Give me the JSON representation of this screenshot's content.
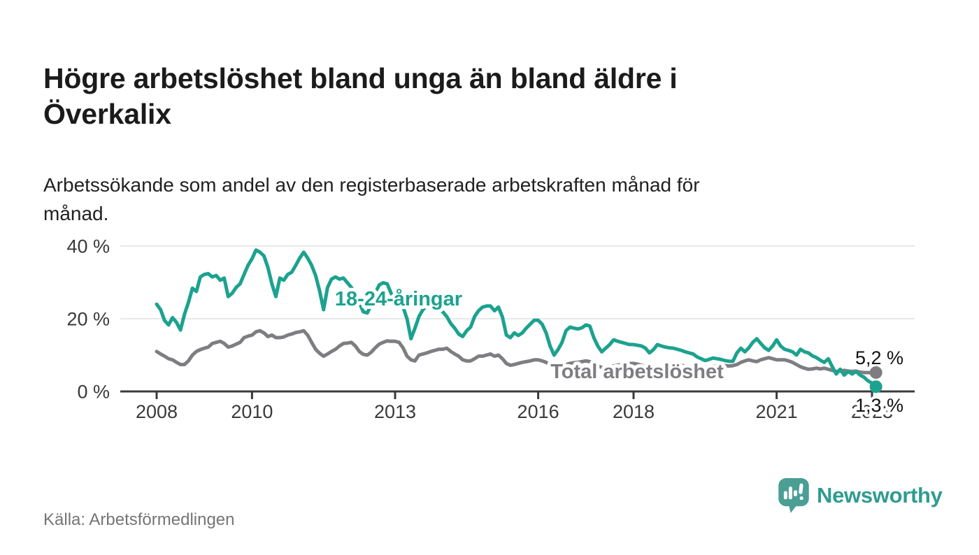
{
  "header": {
    "title": "Högre arbetslöshet bland unga än bland äldre i Överkalix",
    "subtitle": "Arbetssökande som andel av den registerbaserade arbetskraften månad för månad."
  },
  "footer": {
    "source": "Källa: Arbetsförmedlingen",
    "brand": "Newsworthy"
  },
  "colors": {
    "youth": "#1CA28F",
    "total": "#7E7E82",
    "axis": "#3B3B3B",
    "grid": "#DBDBDB",
    "tick_text": "#3A3A3A",
    "end_label": "#111111",
    "halo": "#FFFFFF",
    "brand": "#2E9C90"
  },
  "chart_data": {
    "type": "line",
    "title": "Högre arbetslöshet bland unga än bland äldre i Överkalix",
    "xlabel": "",
    "ylabel": "Arbetssökande som andel av den registerbaserade arbetskraften",
    "x_start": {
      "year": 2008,
      "month": 1
    },
    "x_end": {
      "year": 2023,
      "month": 2
    },
    "x_frequency": "monthly",
    "x_ticks": [
      2008,
      2010,
      2013,
      2016,
      2018,
      2021,
      2023
    ],
    "y_ticks": [
      {
        "value": 0,
        "label": "0 %"
      },
      {
        "value": 20,
        "label": "20 %"
      },
      {
        "value": 40,
        "label": "40 %"
      }
    ],
    "ylim": [
      0,
      43
    ],
    "grid": "horizontal",
    "legend_position": "inline-labels",
    "series": [
      {
        "name": "Total arbetslöshet",
        "key": "total",
        "end_label": "5,2 %",
        "last_value": 5.2,
        "values": [
          11.0,
          10.3,
          9.7,
          9.0,
          8.7,
          8.0,
          7.4,
          7.4,
          8.4,
          10.0,
          11.0,
          11.5,
          11.9,
          12.2,
          13.2,
          13.5,
          13.8,
          13.2,
          12.2,
          12.5,
          13.0,
          13.5,
          14.8,
          15.2,
          15.5,
          16.4,
          16.7,
          16.1,
          15.1,
          15.5,
          14.8,
          14.8,
          15.0,
          15.5,
          15.8,
          16.2,
          16.4,
          16.7,
          15.5,
          13.5,
          11.6,
          10.5,
          9.7,
          10.3,
          11.0,
          11.6,
          12.5,
          13.2,
          13.3,
          13.5,
          12.5,
          11.0,
          10.2,
          10.0,
          10.8,
          12.0,
          13.0,
          13.5,
          13.9,
          13.8,
          13.8,
          13.5,
          12.0,
          9.7,
          8.7,
          8.4,
          10.0,
          10.3,
          10.6,
          11.0,
          11.3,
          11.6,
          11.6,
          11.9,
          11.0,
          10.3,
          9.7,
          8.7,
          8.4,
          8.4,
          9.0,
          9.7,
          9.7,
          10.0,
          10.3,
          9.7,
          10.0,
          9.0,
          7.7,
          7.2,
          7.4,
          7.7,
          8.0,
          8.2,
          8.4,
          8.7,
          8.7,
          8.4,
          8.0,
          7.4,
          7.0,
          6.8,
          7.0,
          7.4,
          7.7,
          7.9,
          8.0,
          8.2,
          8.4,
          8.2,
          7.7,
          7.0,
          6.6,
          6.4,
          6.8,
          7.0,
          7.2,
          7.4,
          7.5,
          7.7,
          7.7,
          7.5,
          7.2,
          6.8,
          6.4,
          6.2,
          6.4,
          6.6,
          6.8,
          7.0,
          7.0,
          7.2,
          7.2,
          7.0,
          6.8,
          6.6,
          6.4,
          6.4,
          6.6,
          6.8,
          7.0,
          7.0,
          7.1,
          7.1,
          7.0,
          7.1,
          7.4,
          8.0,
          8.4,
          8.7,
          8.4,
          8.2,
          8.7,
          9.0,
          9.3,
          9.0,
          8.7,
          8.7,
          8.7,
          8.4,
          8.0,
          7.4,
          6.8,
          6.4,
          6.1,
          6.2,
          6.4,
          6.2,
          6.4,
          6.1,
          5.8,
          5.5,
          5.6,
          5.8,
          5.6,
          5.5,
          5.6,
          5.3,
          5.2,
          5.2,
          5.1,
          5.2
        ]
      },
      {
        "name": "18-24-åringar",
        "key": "youth",
        "end_label": "1,3 %",
        "last_value": 1.3,
        "values": [
          24.0,
          22.5,
          19.5,
          18.3,
          20.3,
          19.0,
          16.9,
          21.2,
          24.5,
          28.4,
          27.5,
          31.5,
          32.2,
          32.4,
          31.5,
          31.9,
          30.6,
          31.2,
          26.1,
          27.0,
          28.6,
          29.6,
          32.2,
          34.7,
          36.5,
          38.9,
          38.3,
          37.3,
          34.1,
          29.6,
          26.1,
          31.2,
          30.6,
          32.2,
          32.8,
          34.7,
          36.7,
          38.3,
          36.7,
          34.7,
          31.9,
          27.7,
          22.5,
          28.6,
          30.9,
          31.5,
          30.9,
          31.2,
          29.9,
          28.6,
          27.0,
          24.5,
          21.9,
          21.6,
          23.8,
          27.0,
          29.3,
          29.9,
          29.6,
          27.0,
          25.1,
          23.8,
          23.2,
          20.0,
          14.5,
          17.4,
          20.6,
          22.5,
          23.5,
          23.2,
          23.5,
          22.5,
          21.9,
          20.6,
          18.7,
          17.4,
          15.8,
          15.1,
          16.7,
          17.7,
          20.6,
          22.2,
          23.2,
          23.5,
          23.5,
          22.2,
          23.2,
          20.5,
          15.5,
          14.8,
          16.1,
          15.4,
          16.1,
          17.4,
          18.5,
          19.6,
          19.6,
          18.5,
          16.1,
          12.5,
          10.0,
          11.5,
          13.5,
          16.7,
          17.7,
          17.4,
          17.2,
          17.5,
          18.3,
          18.0,
          14.8,
          12.5,
          10.9,
          11.9,
          12.9,
          14.2,
          13.8,
          13.5,
          13.2,
          12.9,
          12.9,
          12.7,
          12.5,
          11.9,
          10.6,
          11.5,
          12.9,
          12.5,
          12.2,
          12.0,
          11.9,
          11.6,
          11.3,
          10.9,
          10.6,
          10.3,
          9.5,
          9.0,
          8.5,
          8.8,
          9.2,
          9.0,
          8.8,
          8.5,
          8.3,
          8.3,
          10.6,
          11.9,
          10.9,
          12.0,
          13.5,
          14.5,
          13.2,
          12.0,
          11.3,
          12.5,
          14.2,
          12.5,
          11.6,
          11.3,
          10.9,
          10.0,
          11.6,
          10.9,
          10.6,
          9.8,
          9.3,
          8.6,
          8.0,
          9.0,
          6.8,
          4.8,
          6.1,
          4.5,
          5.5,
          4.8,
          5.5,
          4.5,
          3.9,
          2.9,
          2.3,
          1.3
        ]
      }
    ]
  }
}
